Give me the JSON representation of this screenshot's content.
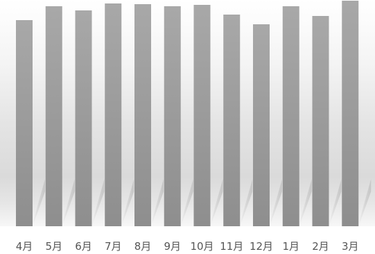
{
  "chart_data": {
    "type": "bar",
    "title": "",
    "xlabel": "",
    "ylabel": "",
    "categories": [
      "4月",
      "5月",
      "6月",
      "7月",
      "8月",
      "9月",
      "10月",
      "11月",
      "12月",
      "1月",
      "2月",
      "3月"
    ],
    "values": [
      297,
      317,
      311,
      321,
      320,
      317,
      319,
      305,
      291,
      317,
      303,
      325
    ],
    "ylim": [
      0,
      325
    ],
    "grid": false,
    "legend": "none",
    "colors": {
      "bar_top": "#a8a8a8",
      "bar_bottom": "#8e8e8e",
      "background_top": "#ffffff",
      "background_band": "#d0d0d0",
      "axis_label": "#555555"
    }
  }
}
